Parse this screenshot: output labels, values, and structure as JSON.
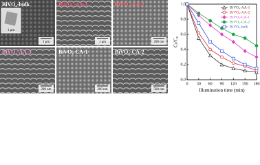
{
  "panels": [
    {
      "label": "BiVO₄-bulk",
      "label_color": "#ffffff",
      "scale_bar": "1 μm",
      "inset_scale_bar": "1 μm"
    },
    {
      "label": "BiVO₄-AA-1",
      "label_color": "#ff5a7a",
      "scale_bar": "1 μm"
    },
    {
      "label": "BiVO₄-AA-2",
      "label_color": "#ff6a6a",
      "scale_bar": "200 nm"
    },
    {
      "label": "BiVO₄-AA-3",
      "label_color": "#ff9ad6",
      "scale_bar": "200 nm"
    },
    {
      "label": "BiVO₄-CA-1",
      "label_color": "#ffffff",
      "scale_bar": "200 nm"
    },
    {
      "label": "BiVO₄-CA-2",
      "label_color": "#ffffff",
      "scale_bar": "500 nm"
    }
  ],
  "chart_data": {
    "type": "line",
    "xlabel": "Illumination time (min)",
    "ylabel": "Cₜ/C₀",
    "x": [
      0,
      30,
      60,
      90,
      120,
      150,
      180
    ],
    "series": [
      {
        "name": "BiVO₄-AA-1",
        "color": "#333333",
        "marker": "triangle-open",
        "values": [
          1.0,
          0.55,
          0.32,
          0.2,
          0.15,
          0.12,
          0.1
        ]
      },
      {
        "name": "BiVO₄-AA-2",
        "color": "#e0202a",
        "marker": "circle-open",
        "values": [
          1.0,
          0.62,
          0.4,
          0.3,
          0.22,
          0.18,
          0.12
        ]
      },
      {
        "name": "BiVO₄-CA-1",
        "color": "#e040c0",
        "marker": "diamond",
        "values": [
          1.0,
          0.85,
          0.72,
          0.6,
          0.5,
          0.38,
          0.3
        ]
      },
      {
        "name": "BiVO₄-CA-2",
        "color": "#22a044",
        "marker": "circle",
        "values": [
          1.0,
          0.88,
          0.78,
          0.68,
          0.6,
          0.55,
          0.45
        ]
      },
      {
        "name": "BiVO₄-bulk",
        "color": "#3355dd",
        "marker": "square-open",
        "values": [
          1.0,
          0.75,
          0.5,
          0.38,
          0.28,
          0.2,
          0.15
        ]
      }
    ],
    "xlim": [
      0,
      180
    ],
    "xticks": [
      0,
      30,
      60,
      90,
      120,
      150,
      180
    ],
    "ylim": [
      0,
      1.0
    ],
    "yticks": [
      {
        "value": 0,
        "label": "0.0"
      },
      0.2,
      0.4,
      0.6,
      0.8,
      {
        "value": 1.0,
        "label": "1.0"
      }
    ],
    "legend": "upper right"
  }
}
